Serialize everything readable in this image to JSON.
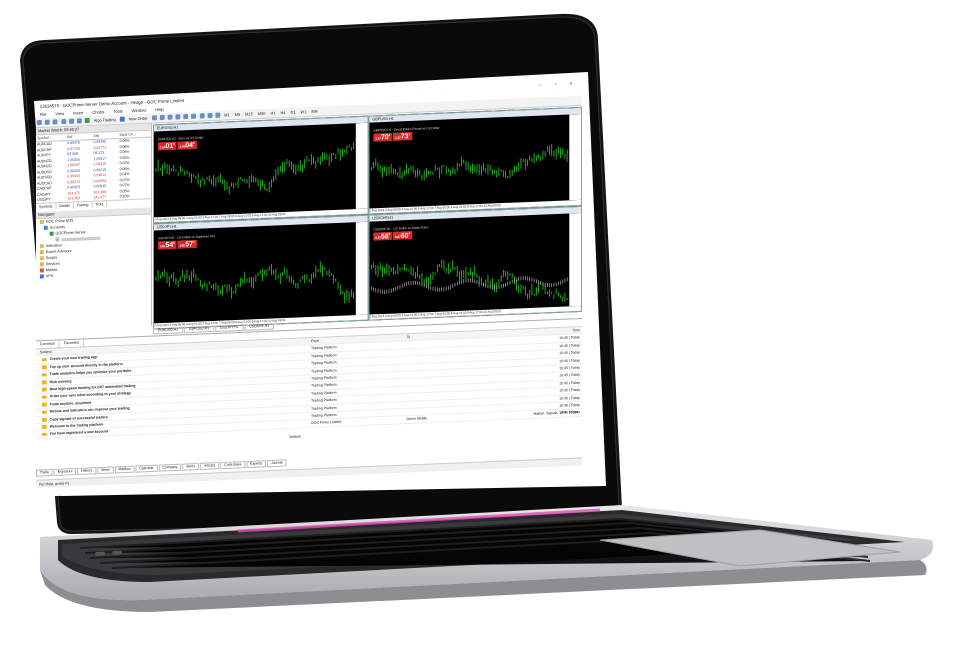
{
  "window": {
    "title": "23634579 - GOCPrime-Server Demo Account - Hedge - GOC Prime Limited",
    "controls": "–  ▫  ×"
  },
  "menu": [
    "File",
    "View",
    "Insert",
    "Charts",
    "Tools",
    "Window",
    "Help"
  ],
  "toolbar": {
    "algo_trading": "Algo Trading",
    "new_order": "New Order",
    "timeframes": [
      "M1",
      "M5",
      "M15",
      "M30",
      "H1",
      "H4",
      "D1",
      "W1",
      "MN"
    ]
  },
  "market_watch": {
    "title": "Market Watch: 09:45:27",
    "columns": [
      "Symbol",
      "Bid",
      "Ask",
      "Daily Ch..."
    ],
    "rows": [
      {
        "symbol": "AUDCAD",
        "bid": "0.89376",
        "ask": "0.89395",
        "change": "0.06%",
        "dir": "blue"
      },
      {
        "symbol": "AUDCHF",
        "bid": "0.61746",
        "ask": "0.61771",
        "change": "0.08%",
        "dir": "red"
      },
      {
        "symbol": "AUDJPY",
        "bid": "93.369",
        "ask": "93.373",
        "change": "0.06%",
        "dir": "blue"
      },
      {
        "symbol": "AUDNZD",
        "bid": "1.09300",
        "ask": "1.09317",
        "change": "0.05%",
        "dir": "blue"
      },
      {
        "symbol": "AUDNZD",
        "bid": "1.08297",
        "ask": "1.08319",
        "change": "0.02%",
        "dir": "red"
      },
      {
        "symbol": "AUDUSD",
        "bid": "0.66203",
        "ask": "0.66219",
        "change": "0.06%",
        "dir": "blue"
      },
      {
        "symbol": "AUDSGD",
        "bid": "0.89593",
        "ask": "0.89614",
        "change": "0.04%",
        "dir": "red"
      },
      {
        "symbol": "AUDCAD",
        "bid": "0.89373",
        "ask": "0.89394",
        "change": "0.07%",
        "dir": "red"
      },
      {
        "symbol": "CADCHF",
        "bid": "0.66923",
        "ask": "0.66945",
        "change": "0.07%",
        "dir": "blue"
      },
      {
        "symbol": "CADJPY",
        "bid": "104.372",
        "ask": "104.399",
        "change": "0.05%",
        "dir": "red"
      },
      {
        "symbol": "USDJPY",
        "bid": "141.363",
        "ask": "141.377",
        "change": "0.10%",
        "dir": "red"
      }
    ],
    "tabs": [
      "Symbols",
      "Details",
      "Trading",
      "Ticks"
    ]
  },
  "navigator": {
    "title": "Navigator",
    "items": [
      "GOC Prime MT5",
      "Accounts",
      "GOCPrime-Server",
      "Indicators",
      "Expert Advisors",
      "Scripts",
      "Services",
      "Market",
      "VPS"
    ]
  },
  "charts": [
    {
      "title": "EURUSD,H1",
      "subtitle": "EURUSD,H1 - Euro vs US Dollar",
      "sell": "01",
      "sell_pre": "1.09",
      "sell_sup": "8",
      "buy": "04",
      "buy_pre": "1.09",
      "buy_sup": "4",
      "lot": "1.00",
      "dates": "2 Aug 2023   3 Aug 09:00   4 Aug 01:00   5 Aug 17:00   7 Aug 09:00   8 Aug 01:00   9 Aug 17:00   10 Aug 09:00"
    },
    {
      "title": "GBPUSD,H1",
      "subtitle": "GBPUSD,H1 - Great Britain Pound vs US Dollar",
      "sell": "70",
      "sell_pre": "1.27",
      "sell_sup": "4",
      "buy": "73",
      "buy_pre": "1.27",
      "buy_sup": "1",
      "lot": "1.00",
      "dates": "2 Aug 2023   3 Aug 09:00   4 Aug 01:00   5 Aug 17:00   7 Aug 09:00   8 Aug 01:00   9 Aug 17:00   10 Aug 09:00"
    },
    {
      "title": "USDJPY,H1",
      "subtitle": "USDJPY,H1 - US Dollar vs Japanese Yen",
      "sell": "54",
      "sell_pre": "143.",
      "sell_sup": "8",
      "buy": "57",
      "buy_pre": "143.",
      "buy_sup": "3",
      "lot": "1.00",
      "dates": "2 Aug 2023   3 Aug 09:00   4 Aug 01:00   5 Aug 17:00   7 Aug 09:00   8 Aug 01:00   9 Aug 17:00   10 Aug 09:00"
    },
    {
      "title": "USDCHF,H1",
      "subtitle": "USDCHF,H1 - US Dollar vs Swiss Franc",
      "sell": "58",
      "sell_pre": "0.87",
      "sell_sup": "8",
      "buy": "60",
      "buy_pre": "0.87",
      "buy_sup": "1",
      "lot": "1.00",
      "dates": "2 Aug 2023   3 Aug 09:00   4 Aug 01:00   5 Aug 17:00   7 Aug 09:00   8 Aug 01:00   9 Aug 17:00   10 Aug 09:00"
    }
  ],
  "chart_tabs": [
    "EURUSD,H1",
    "GBPUSD,H1",
    "USDJPY,H1",
    "USDCHF,H1"
  ],
  "toolbox": {
    "head_tabs": [
      "Common",
      "Favorites"
    ],
    "columns": {
      "subject": "Subject",
      "from": "From",
      "to": "To",
      "time": "Time"
    },
    "messages": [
      {
        "subject": "Create your own trading app",
        "from": "Trading Platform",
        "to": "",
        "time": "10:45 | Today"
      },
      {
        "subject": "Top up your account directly in the platform",
        "from": "Trading Platform",
        "to": "",
        "time": "10:45 | Today"
      },
      {
        "subject": "Trade analytics helps you optimize your portfolio",
        "from": "Trading Platform",
        "to": "",
        "time": "10:45 | Today"
      },
      {
        "subject": "Risk warning",
        "from": "Trading Platform",
        "to": "",
        "time": "10:45 | Today"
      },
      {
        "subject": "Best high-speed hosting for 24/7 automated trading",
        "from": "Trading Platform",
        "to": "",
        "time": "10:45 | Today"
      },
      {
        "subject": "Order your own robot according to your strategy",
        "from": "Trading Platform",
        "to": "",
        "time": "10:45 | Today"
      },
      {
        "subject": "Trade anytime, anywhere",
        "from": "Trading Platform",
        "to": "",
        "time": "10:45 | Today"
      },
      {
        "subject": "Robots and indicators can improve your trading",
        "from": "Trading Platform",
        "to": "",
        "time": "10:45 | Today"
      },
      {
        "subject": "Copy signals of successful traders",
        "from": "Trading Platform",
        "to": "",
        "time": "10:45 | Today"
      },
      {
        "subject": "Welcome to the trading platform",
        "from": "Trading Platform",
        "to": "",
        "time": "10:45 | Today"
      },
      {
        "subject": "You have registered a new account",
        "from": "GOC Prime Limited",
        "to": "Demo Mobile",
        "time": "10:45 | Today"
      }
    ],
    "side_status": [
      "Market",
      "Signals",
      "VPS",
      "Tester"
    ],
    "footer_left": "Default",
    "bottom_tabs": [
      "Trade",
      "Exposure",
      "History",
      "News",
      "Mailbox",
      "Calendar",
      "Company",
      "Alerts",
      "Articles",
      "Code Base",
      "Experts",
      "Journal"
    ]
  },
  "statusbar": {
    "text": "For Help, press F1"
  }
}
